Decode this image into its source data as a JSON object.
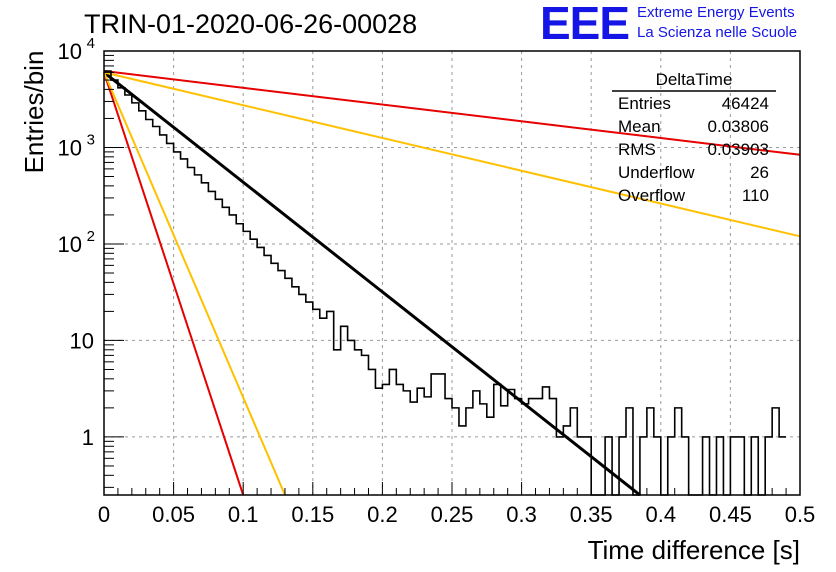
{
  "header": {
    "run_title": "TRIN-01-2020-06-26-00028",
    "logo_text": "EEE",
    "org_line1": "Extreme Energy Events",
    "org_line2": "La Scienza nelle Scuole",
    "brand_color": "#1515e6"
  },
  "stats_box": {
    "title": "DeltaTime",
    "rows": [
      {
        "label": "Entries",
        "value": "46424"
      },
      {
        "label": "Mean",
        "value": "0.03806"
      },
      {
        "label": "RMS",
        "value": "0.03903"
      },
      {
        "label": "Underflow",
        "value": "26"
      },
      {
        "label": "Overflow",
        "value": "110"
      }
    ]
  },
  "chart_data": {
    "type": "line",
    "title": "TRIN-01-2020-06-26-00028",
    "xlabel": "Time difference [s]",
    "ylabel": "Entries/bin",
    "xlim": [
      0,
      0.5
    ],
    "ylim": [
      0.25,
      10000
    ],
    "yscale": "log",
    "grid": true,
    "x_ticks": [
      {
        "v": 0,
        "label": "0"
      },
      {
        "v": 0.05,
        "label": "0.05"
      },
      {
        "v": 0.1,
        "label": "0.1"
      },
      {
        "v": 0.15,
        "label": "0.15"
      },
      {
        "v": 0.2,
        "label": "0.2"
      },
      {
        "v": 0.25,
        "label": "0.25"
      },
      {
        "v": 0.3,
        "label": "0.3"
      },
      {
        "v": 0.35,
        "label": "0.35"
      },
      {
        "v": 0.4,
        "label": "0.4"
      },
      {
        "v": 0.45,
        "label": "0.45"
      },
      {
        "v": 0.5,
        "label": "0.5"
      }
    ],
    "y_ticks": [
      {
        "v": 1,
        "label": "1"
      },
      {
        "v": 10,
        "label": "10"
      },
      {
        "v": 100,
        "label": "10",
        "exp": "2"
      },
      {
        "v": 1000,
        "label": "10",
        "exp": "3"
      },
      {
        "v": 10000,
        "label": "10",
        "exp": "4"
      }
    ],
    "histogram": {
      "color": "#000000",
      "bin_width": 0.005,
      "counts": [
        6200,
        5000,
        4150,
        3500,
        2900,
        2400,
        1950,
        1650,
        1350,
        1100,
        900,
        760,
        620,
        520,
        430,
        350,
        290,
        240,
        200,
        162,
        135,
        112,
        92,
        76,
        63,
        53,
        44,
        36,
        30,
        25,
        21,
        17,
        20,
        8,
        14,
        10,
        8,
        7,
        5,
        3.2,
        3.5,
        5,
        3.5,
        3,
        2.3,
        3.2,
        2.6,
        4.5,
        4.5,
        2.5,
        2,
        1.3,
        2,
        3,
        2.2,
        1.6,
        3.5,
        2.1,
        3.1,
        2.5,
        2.2,
        2.5,
        2.5,
        3.3,
        2.5,
        1,
        1.3,
        2,
        1,
        1,
        0.25,
        0.25,
        1,
        0.25,
        1,
        2,
        0.25,
        1,
        2,
        1,
        0.25,
        1,
        2,
        1,
        0.25,
        0.25,
        1,
        0.25,
        1,
        0.25,
        1,
        1,
        0.25,
        1,
        0.25,
        1,
        2,
        1
      ]
    },
    "fit_lines": [
      {
        "color": "#000000",
        "x": [
          0,
          0.385
        ],
        "y": [
          6000,
          0.25
        ]
      },
      {
        "color": "#e60000",
        "x": [
          0,
          0.5
        ],
        "y": [
          6200,
          840
        ]
      },
      {
        "color": "#ffc000",
        "x": [
          0,
          0.5
        ],
        "y": [
          6000,
          120
        ]
      },
      {
        "color": "#e60000",
        "x": [
          0,
          0.1
        ],
        "y": [
          6000,
          0.25
        ]
      },
      {
        "color": "#ffc000",
        "x": [
          0,
          0.13
        ],
        "y": [
          6000,
          0.25
        ]
      }
    ]
  }
}
